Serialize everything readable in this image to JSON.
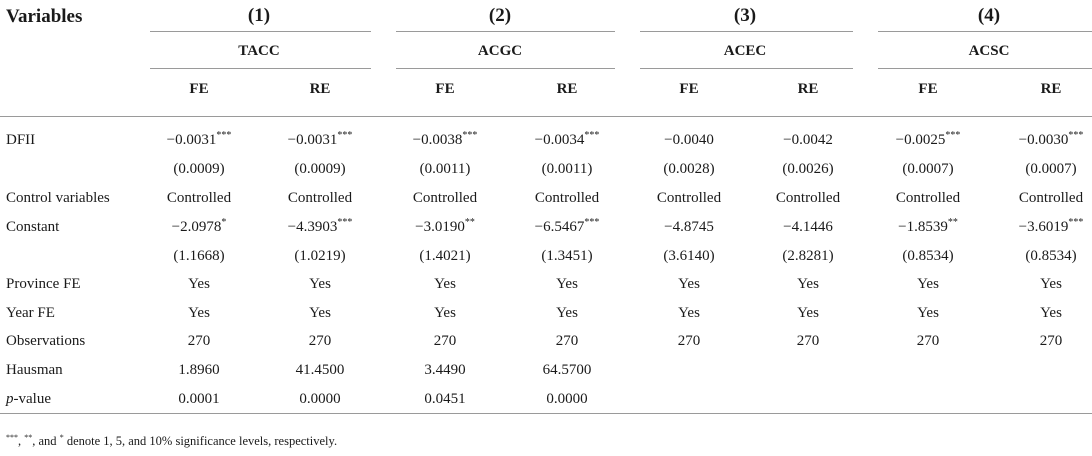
{
  "header": {
    "variables_label": "Variables",
    "models": [
      "(1)",
      "(2)",
      "(3)",
      "(4)"
    ],
    "dependents": [
      "TACC",
      "ACGC",
      "ACEC",
      "ACSC"
    ],
    "estimators": [
      "FE",
      "RE",
      "FE",
      "RE",
      "FE",
      "RE",
      "FE",
      "RE"
    ]
  },
  "rows": [
    {
      "label": "DFII",
      "cells": [
        {
          "v": "−0.0031",
          "s": "***"
        },
        {
          "v": "−0.0031",
          "s": "***"
        },
        {
          "v": "−0.0038",
          "s": "***"
        },
        {
          "v": "−0.0034",
          "s": "***"
        },
        {
          "v": "−0.0040",
          "s": ""
        },
        {
          "v": "−0.0042",
          "s": ""
        },
        {
          "v": "−0.0025",
          "s": "***"
        },
        {
          "v": "−0.0030",
          "s": "***"
        }
      ]
    },
    {
      "label": "",
      "cells": [
        {
          "v": "(0.0009)",
          "s": ""
        },
        {
          "v": "(0.0009)",
          "s": ""
        },
        {
          "v": "(0.0011)",
          "s": ""
        },
        {
          "v": "(0.0011)",
          "s": ""
        },
        {
          "v": "(0.0028)",
          "s": ""
        },
        {
          "v": "(0.0026)",
          "s": ""
        },
        {
          "v": "(0.0007)",
          "s": ""
        },
        {
          "v": "(0.0007)",
          "s": ""
        }
      ]
    },
    {
      "label": "Control variables",
      "cells": [
        {
          "v": "Controlled",
          "s": ""
        },
        {
          "v": "Controlled",
          "s": ""
        },
        {
          "v": "Controlled",
          "s": ""
        },
        {
          "v": "Controlled",
          "s": ""
        },
        {
          "v": "Controlled",
          "s": ""
        },
        {
          "v": "Controlled",
          "s": ""
        },
        {
          "v": "Controlled",
          "s": ""
        },
        {
          "v": "Controlled",
          "s": ""
        }
      ]
    },
    {
      "label": "Constant",
      "cells": [
        {
          "v": "−2.0978",
          "s": "*"
        },
        {
          "v": "−4.3903",
          "s": "***"
        },
        {
          "v": "−3.0190",
          "s": "**"
        },
        {
          "v": "−6.5467",
          "s": "***"
        },
        {
          "v": "−4.8745",
          "s": ""
        },
        {
          "v": "−4.1446",
          "s": ""
        },
        {
          "v": "−1.8539",
          "s": "**"
        },
        {
          "v": "−3.6019",
          "s": "***"
        }
      ]
    },
    {
      "label": "",
      "cells": [
        {
          "v": "(1.1668)",
          "s": ""
        },
        {
          "v": "(1.0219)",
          "s": ""
        },
        {
          "v": "(1.4021)",
          "s": ""
        },
        {
          "v": "(1.3451)",
          "s": ""
        },
        {
          "v": "(3.6140)",
          "s": ""
        },
        {
          "v": "(2.8281)",
          "s": ""
        },
        {
          "v": "(0.8534)",
          "s": ""
        },
        {
          "v": "(0.8534)",
          "s": ""
        }
      ]
    },
    {
      "label": "Province FE",
      "cells": [
        {
          "v": "Yes",
          "s": ""
        },
        {
          "v": "Yes",
          "s": ""
        },
        {
          "v": "Yes",
          "s": ""
        },
        {
          "v": "Yes",
          "s": ""
        },
        {
          "v": "Yes",
          "s": ""
        },
        {
          "v": "Yes",
          "s": ""
        },
        {
          "v": "Yes",
          "s": ""
        },
        {
          "v": "Yes",
          "s": ""
        }
      ]
    },
    {
      "label": "Year FE",
      "cells": [
        {
          "v": "Yes",
          "s": ""
        },
        {
          "v": "Yes",
          "s": ""
        },
        {
          "v": "Yes",
          "s": ""
        },
        {
          "v": "Yes",
          "s": ""
        },
        {
          "v": "Yes",
          "s": ""
        },
        {
          "v": "Yes",
          "s": ""
        },
        {
          "v": "Yes",
          "s": ""
        },
        {
          "v": "Yes",
          "s": ""
        }
      ]
    },
    {
      "label": "Observations",
      "cells": [
        {
          "v": "270",
          "s": ""
        },
        {
          "v": "270",
          "s": ""
        },
        {
          "v": "270",
          "s": ""
        },
        {
          "v": "270",
          "s": ""
        },
        {
          "v": "270",
          "s": ""
        },
        {
          "v": "270",
          "s": ""
        },
        {
          "v": "270",
          "s": ""
        },
        {
          "v": "270",
          "s": ""
        }
      ]
    },
    {
      "label": "Hausman",
      "cells": [
        {
          "v": "1.8960",
          "s": ""
        },
        {
          "v": "41.4500",
          "s": ""
        },
        {
          "v": "3.4490",
          "s": ""
        },
        {
          "v": "64.5700",
          "s": ""
        },
        {
          "v": "",
          "s": ""
        },
        {
          "v": "",
          "s": ""
        },
        {
          "v": "",
          "s": ""
        },
        {
          "v": "",
          "s": ""
        }
      ]
    },
    {
      "label_italic": "p",
      "label": "-value",
      "cells": [
        {
          "v": "0.0001",
          "s": ""
        },
        {
          "v": "0.0000",
          "s": ""
        },
        {
          "v": "0.0451",
          "s": ""
        },
        {
          "v": "0.0000",
          "s": ""
        },
        {
          "v": "",
          "s": ""
        },
        {
          "v": "",
          "s": ""
        },
        {
          "v": "",
          "s": ""
        },
        {
          "v": "",
          "s": ""
        }
      ]
    }
  ],
  "footnote": {
    "sym1": "***",
    "sep1": ", ",
    "sym2": "**",
    "sep2": ", and ",
    "sym3": "*",
    "text": " denote 1, 5, and 10% significance levels, respectively."
  }
}
